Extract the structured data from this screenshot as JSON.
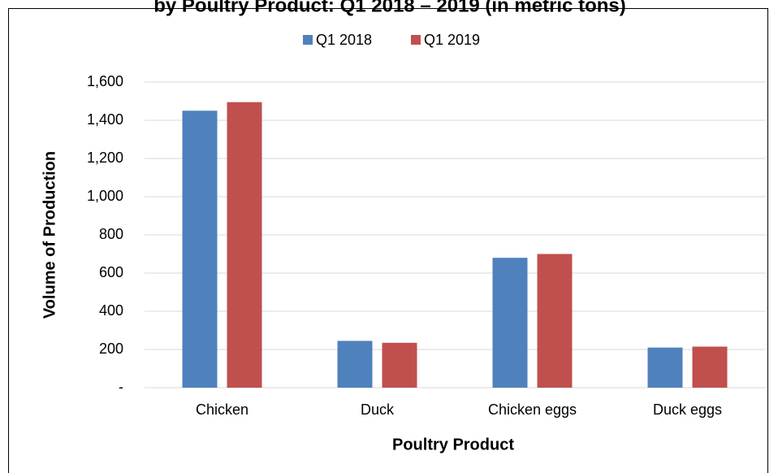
{
  "chart_data": {
    "type": "bar",
    "title": "by Poultry Product: Q1 2018 – 2019 (in metric tons)",
    "x_label": "Poultry Product",
    "y_label": "Volume of Production",
    "categories": [
      "Chicken",
      "Duck",
      "Chicken eggs",
      "Duck eggs"
    ],
    "series": [
      {
        "name": "Q1 2018",
        "color": "#4f81bd",
        "values": [
          1450,
          245,
          680,
          210
        ]
      },
      {
        "name": "Q1 2019",
        "color": "#c0504d",
        "values": [
          1495,
          235,
          700,
          215
        ]
      }
    ],
    "ylim": [
      0,
      1600
    ],
    "yticks": [
      {
        "value": 0,
        "label": "-"
      },
      200,
      400,
      600,
      800,
      {
        "value": 1000,
        "label": "1,000"
      },
      {
        "value": 1200,
        "label": "1,200"
      },
      {
        "value": 1400,
        "label": "1,400"
      },
      {
        "value": 1600,
        "label": "1,600"
      }
    ],
    "grid": true,
    "legend": "top"
  }
}
